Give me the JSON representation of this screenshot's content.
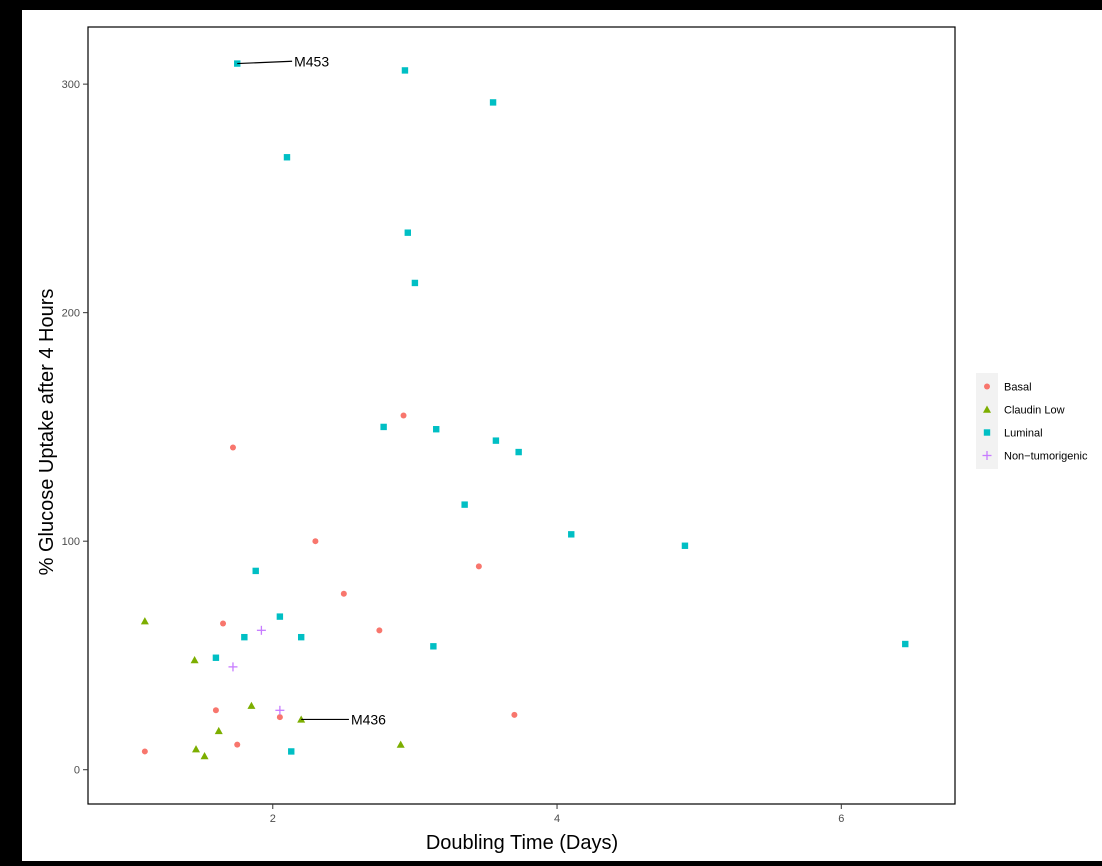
{
  "chart_data": {
    "type": "scatter",
    "xlabel": "Doubling Time (Days)",
    "ylabel": "% Glucose Uptake after 4 Hours",
    "xlim": [
      0.7,
      6.8
    ],
    "ylim": [
      -15,
      325
    ],
    "x_ticks": [
      2,
      4,
      6
    ],
    "y_ticks": [
      0,
      100,
      200,
      300
    ],
    "grid": false,
    "legend_position": "right",
    "series": [
      {
        "name": "Basal",
        "marker": "circle",
        "color": "#F8766D",
        "points": [
          {
            "x": 1.1,
            "y": 8
          },
          {
            "x": 1.6,
            "y": 26
          },
          {
            "x": 1.65,
            "y": 64
          },
          {
            "x": 1.72,
            "y": 141
          },
          {
            "x": 1.75,
            "y": 11
          },
          {
            "x": 2.05,
            "y": 23
          },
          {
            "x": 2.3,
            "y": 100
          },
          {
            "x": 2.5,
            "y": 77
          },
          {
            "x": 2.75,
            "y": 61
          },
          {
            "x": 2.92,
            "y": 155
          },
          {
            "x": 3.45,
            "y": 89
          },
          {
            "x": 3.7,
            "y": 24
          }
        ]
      },
      {
        "name": "Claudin Low",
        "marker": "triangle",
        "color": "#7CAE00",
        "points": [
          {
            "x": 1.1,
            "y": 65
          },
          {
            "x": 1.45,
            "y": 48
          },
          {
            "x": 1.46,
            "y": 9
          },
          {
            "x": 1.52,
            "y": 6
          },
          {
            "x": 1.62,
            "y": 17
          },
          {
            "x": 1.85,
            "y": 28
          },
          {
            "x": 2.2,
            "y": 22
          },
          {
            "x": 2.9,
            "y": 11
          }
        ]
      },
      {
        "name": "Luminal",
        "marker": "square",
        "color": "#00BFC4",
        "points": [
          {
            "x": 1.6,
            "y": 49
          },
          {
            "x": 1.75,
            "y": 309
          },
          {
            "x": 1.8,
            "y": 58
          },
          {
            "x": 1.88,
            "y": 87
          },
          {
            "x": 2.05,
            "y": 67
          },
          {
            "x": 2.1,
            "y": 268
          },
          {
            "x": 2.13,
            "y": 8
          },
          {
            "x": 2.2,
            "y": 58
          },
          {
            "x": 2.78,
            "y": 150
          },
          {
            "x": 2.93,
            "y": 306
          },
          {
            "x": 2.95,
            "y": 235
          },
          {
            "x": 3.0,
            "y": 213
          },
          {
            "x": 3.13,
            "y": 54
          },
          {
            "x": 3.15,
            "y": 149
          },
          {
            "x": 3.35,
            "y": 116
          },
          {
            "x": 3.55,
            "y": 292
          },
          {
            "x": 3.57,
            "y": 144
          },
          {
            "x": 3.73,
            "y": 139
          },
          {
            "x": 4.1,
            "y": 103
          },
          {
            "x": 4.9,
            "y": 98
          },
          {
            "x": 6.45,
            "y": 55
          }
        ]
      },
      {
        "name": "Non−tumorigenic",
        "marker": "plus",
        "color": "#C77CFF",
        "points": [
          {
            "x": 1.72,
            "y": 45
          },
          {
            "x": 1.92,
            "y": 61
          },
          {
            "x": 2.05,
            "y": 26
          }
        ]
      }
    ],
    "annotations": [
      {
        "label": "M453",
        "x": 1.75,
        "y": 309,
        "text_x": 2.15,
        "text_y": 310
      },
      {
        "label": "M436",
        "x": 2.2,
        "y": 22,
        "text_x": 2.55,
        "text_y": 22
      }
    ]
  }
}
